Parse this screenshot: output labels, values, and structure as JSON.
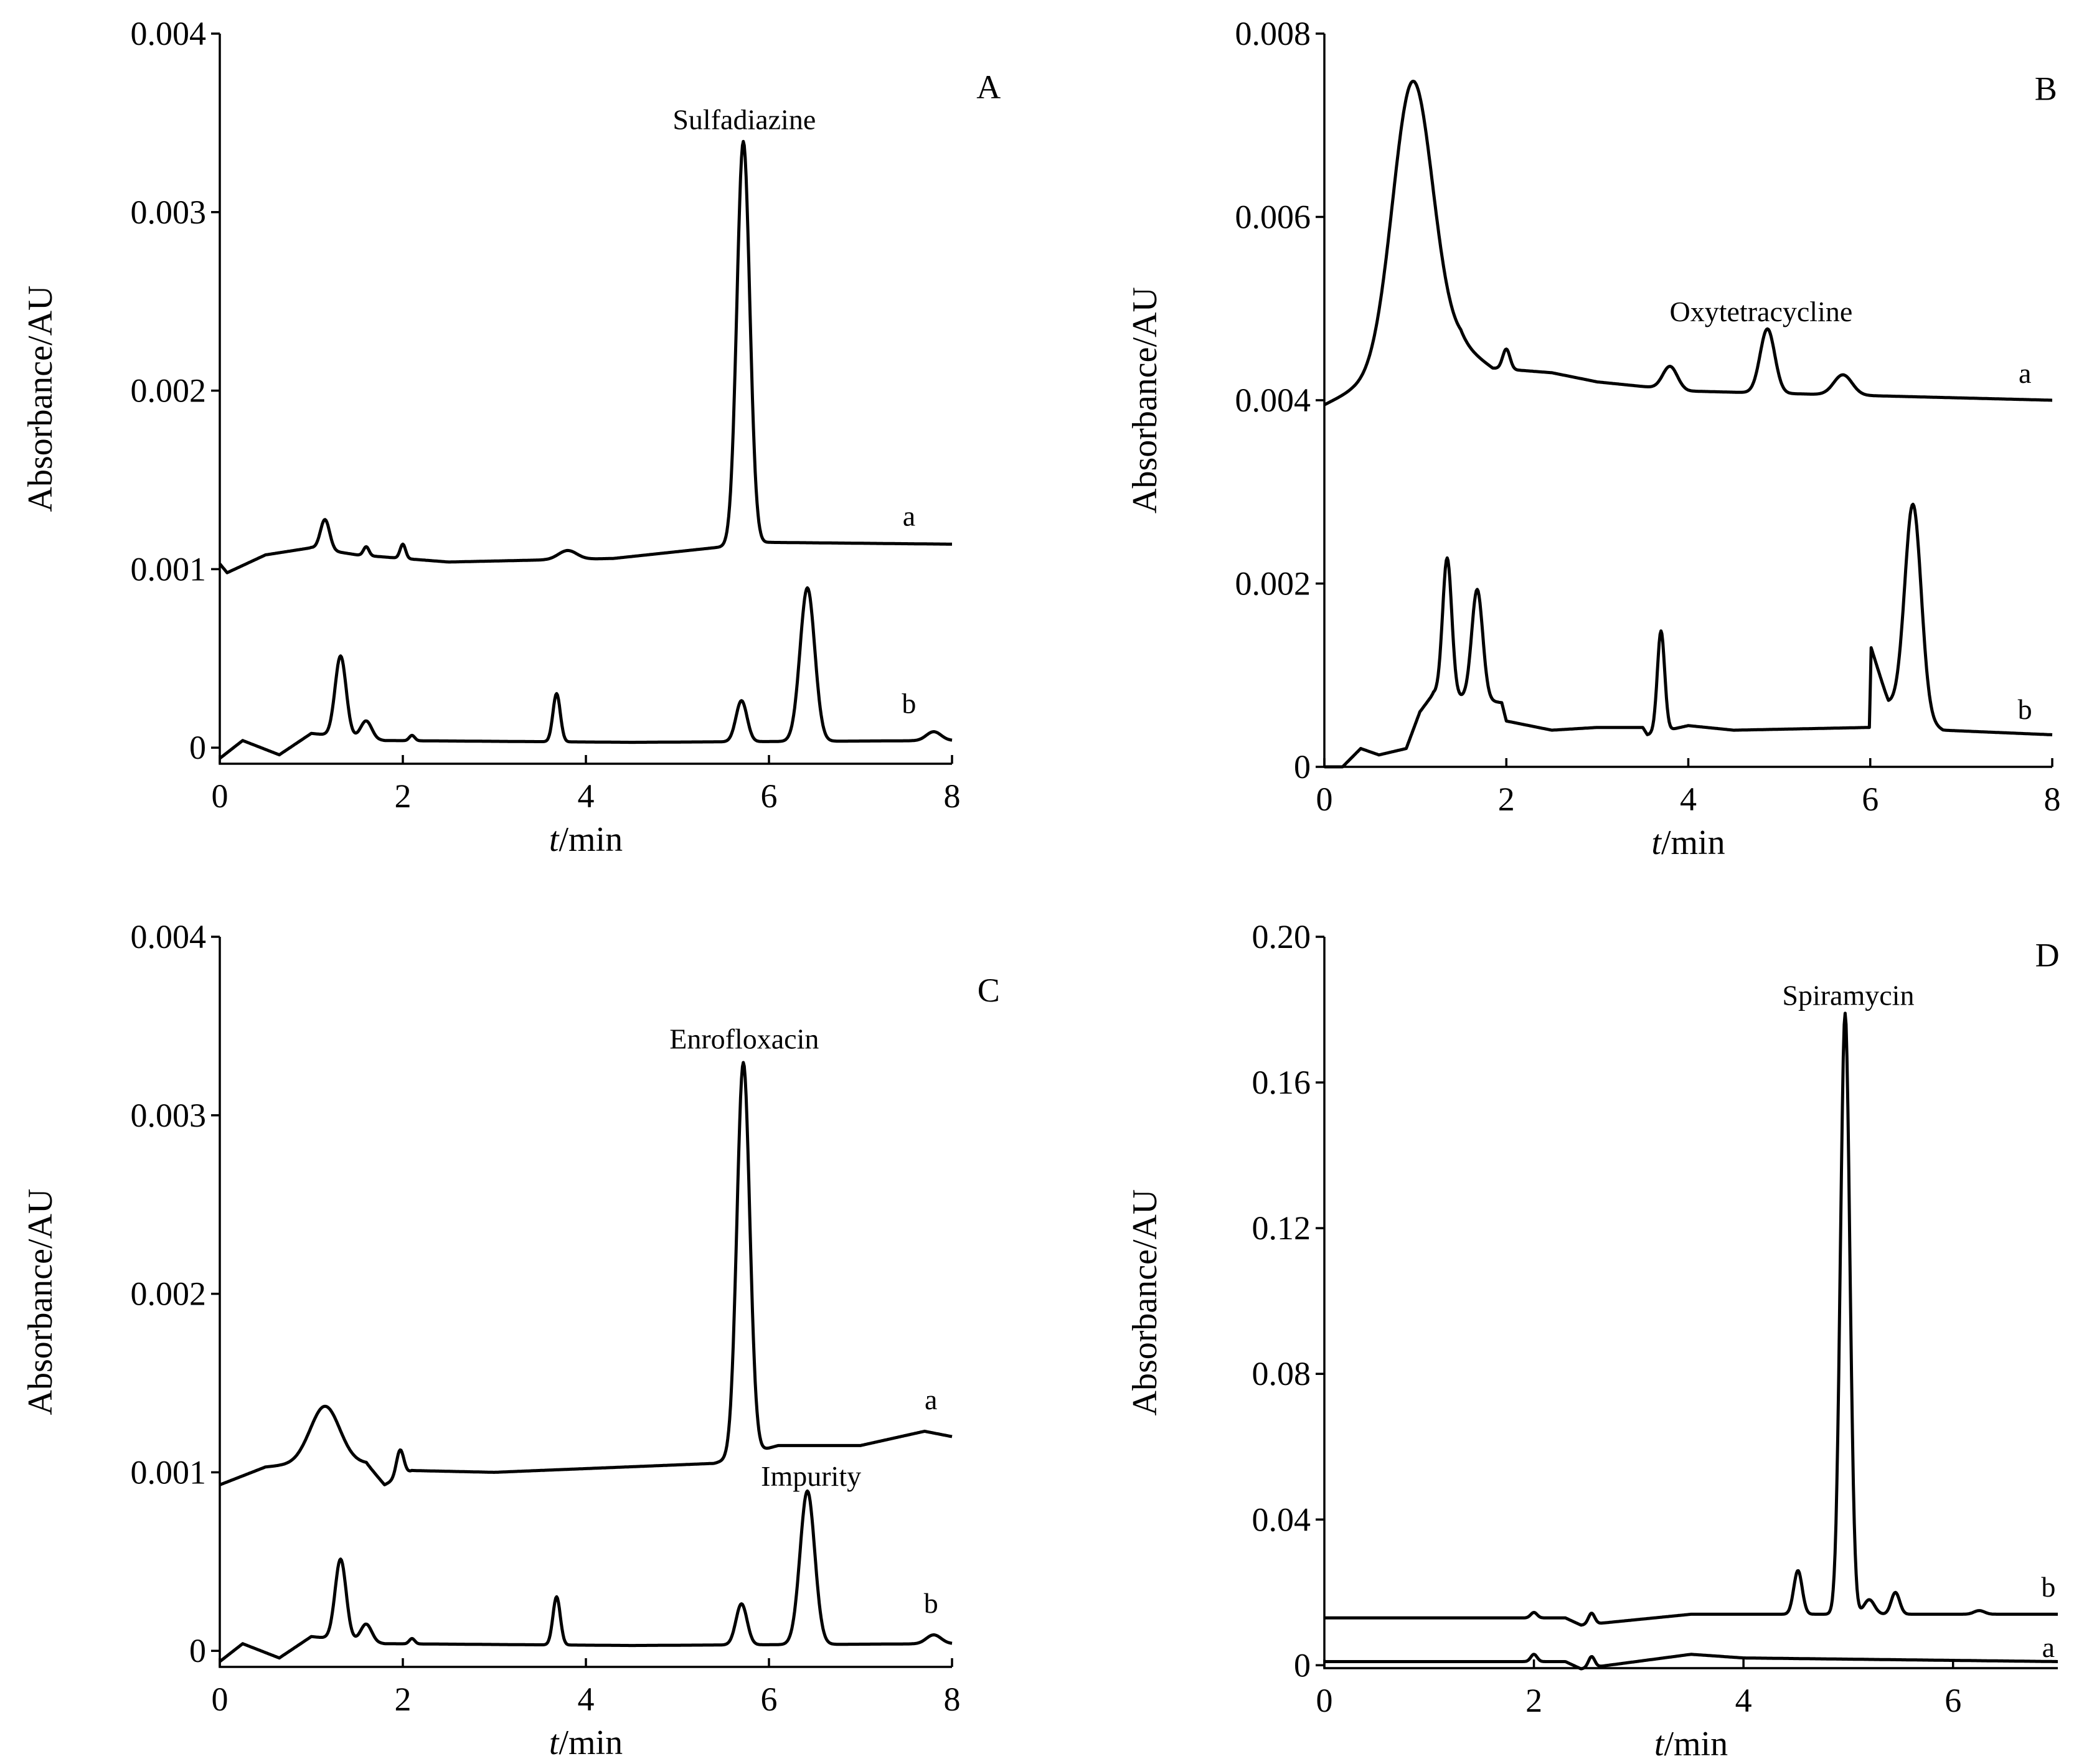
{
  "chart_data": [
    {
      "type": "line",
      "panel": "A",
      "xlabel_italic": "t",
      "xlabel_rest": "/min",
      "ylabel": "Absorbance/AU",
      "xlim": [
        0,
        8
      ],
      "ylim": [
        -9e-05,
        0.004
      ],
      "xticks": [
        "0",
        "2",
        "4",
        "6",
        "8"
      ],
      "xtick_values": [
        0,
        2,
        4,
        6,
        8
      ],
      "yticks": [
        "0",
        "0.001",
        "0.002",
        "0.003",
        "0.004"
      ],
      "ytick_values": [
        0,
        0.001,
        0.002,
        0.003,
        0.004
      ],
      "panel_label": {
        "text": "A",
        "x": 8.4,
        "y": 0.0037
      },
      "annotations": [
        {
          "text": "Sulfadiazine",
          "x": 5.73,
          "y": 0.00352
        }
      ],
      "series": [
        {
          "name": "a",
          "label_pos": [
            7.53,
            0.0013
          ],
          "baseline": [
            [
              0,
              0.00103
            ],
            [
              0.08,
              0.00098
            ],
            [
              0.5,
              0.00108
            ],
            [
              1,
              0.00112
            ],
            [
              1.5,
              0.00108
            ],
            [
              2.5,
              0.00104
            ],
            [
              4.3,
              0.00106
            ],
            [
              5.4,
              0.00112
            ],
            [
              6,
              0.00115
            ],
            [
              8,
              0.00114
            ]
          ],
          "peaks": [
            [
              1.15,
              0.00017,
              0.05
            ],
            [
              1.6,
              5e-05,
              0.03
            ],
            [
              2.0,
              8e-05,
              0.03
            ],
            [
              3.8,
              5e-05,
              0.1
            ],
            [
              5.72,
              0.00226,
              0.07
            ]
          ]
        },
        {
          "name": "b",
          "label_pos": [
            7.53,
            0.00025
          ],
          "baseline": [
            [
              0,
              -6e-05
            ],
            [
              0.25,
              4e-05
            ],
            [
              0.65,
              -4e-05
            ],
            [
              1.0,
              8e-05
            ],
            [
              1.8,
              4e-05
            ],
            [
              4.5,
              3e-05
            ],
            [
              8,
              4e-05
            ]
          ],
          "peaks": [
            [
              1.32,
              0.00045,
              0.06
            ],
            [
              1.6,
              0.0001,
              0.06
            ],
            [
              2.1,
              3e-05,
              0.03
            ],
            [
              3.68,
              0.00027,
              0.04
            ],
            [
              5.7,
              0.00023,
              0.06
            ],
            [
              6.42,
              0.00086,
              0.08
            ],
            [
              7.8,
              5e-05,
              0.08
            ]
          ]
        }
      ]
    },
    {
      "type": "line",
      "panel": "B",
      "xlabel_italic": "t",
      "xlabel_rest": "/min",
      "ylabel": "Absorbance/AU",
      "xlim": [
        0,
        8
      ],
      "ylim": [
        0,
        0.008
      ],
      "xticks": [
        "0",
        "2",
        "4",
        "6",
        "8"
      ],
      "xtick_values": [
        0,
        2,
        4,
        6,
        8
      ],
      "yticks": [
        "0",
        "0.002",
        "0.004",
        "0.006",
        "0.008"
      ],
      "ytick_values": [
        0,
        0.002,
        0.004,
        0.006,
        0.008
      ],
      "panel_label": {
        "text": "B",
        "x": 7.93,
        "y": 0.0074
      },
      "annotations": [
        {
          "text": "Oxytetracycline",
          "x": 4.8,
          "y": 0.00497
        }
      ],
      "series": [
        {
          "name": "a",
          "label_pos": [
            7.7,
            0.0043
          ],
          "baseline": [
            [
              0,
              0.00395
            ],
            [
              0.3,
              0.0041
            ],
            [
              1.5,
              0.0046
            ],
            [
              1.85,
              0.00435
            ],
            [
              2.5,
              0.0043
            ],
            [
              3,
              0.0042
            ],
            [
              4,
              0.0041
            ],
            [
              6,
              0.00405
            ],
            [
              8,
              0.004
            ]
          ],
          "peaks": [
            [
              0.97,
              0.0031,
              0.22
            ],
            [
              2.0,
              0.00022,
              0.04
            ],
            [
              3.8,
              0.00025,
              0.08
            ],
            [
              4.87,
              0.0007,
              0.08
            ],
            [
              5.7,
              0.00022,
              0.1
            ]
          ]
        },
        {
          "name": "b",
          "label_pos": [
            7.7,
            0.00063
          ],
          "baseline": [
            [
              0,
              0
            ],
            [
              0.2,
              0
            ],
            [
              0.4,
              0.0002
            ],
            [
              0.6,
              0.00013
            ],
            [
              0.9,
              0.0002
            ],
            [
              1.05,
              0.0006
            ],
            [
              1.2,
              0.0008
            ],
            [
              1.95,
              0.0007
            ],
            [
              2.0,
              0.0005
            ],
            [
              2.5,
              0.0004
            ],
            [
              3,
              0.00043
            ],
            [
              3.5,
              0.00043
            ],
            [
              3.55,
              0.00035
            ],
            [
              4,
              0.00045
            ],
            [
              4.5,
              0.0004
            ],
            [
              5.99,
              0.00043
            ],
            [
              6.01,
              0.0013
            ],
            [
              6.2,
              0.0007
            ],
            [
              6.8,
              0.0004
            ],
            [
              8,
              0.00035
            ]
          ],
          "peaks": [
            [
              1.35,
              0.0015,
              0.05
            ],
            [
              1.68,
              0.0012,
              0.06
            ],
            [
              3.7,
              0.0011,
              0.04
            ],
            [
              6.47,
              0.0023,
              0.09
            ]
          ]
        }
      ]
    },
    {
      "type": "line",
      "panel": "C",
      "xlabel_italic": "t",
      "xlabel_rest": "/min",
      "ylabel": "Absorbance/AU",
      "xlim": [
        0,
        8
      ],
      "ylim": [
        -9e-05,
        0.004
      ],
      "xticks": [
        "0",
        "2",
        "4",
        "6",
        "8"
      ],
      "xtick_values": [
        0,
        2,
        4,
        6,
        8
      ],
      "yticks": [
        "0",
        "0.001",
        "0.002",
        "0.003",
        "0.004"
      ],
      "ytick_values": [
        0,
        0.001,
        0.002,
        0.003,
        0.004
      ],
      "panel_label": {
        "text": "C",
        "x": 8.4,
        "y": 0.0037
      },
      "annotations": [
        {
          "text": "Enrofloxacin",
          "x": 5.73,
          "y": 0.00343
        },
        {
          "text": "Impurity",
          "x": 6.46,
          "y": 0.00098
        }
      ],
      "series": [
        {
          "name": "a",
          "label_pos": [
            7.77,
            0.00141
          ],
          "baseline": [
            [
              0,
              0.00093
            ],
            [
              0.5,
              0.00103
            ],
            [
              0.9,
              0.00105
            ],
            [
              1.6,
              0.00105
            ],
            [
              1.8,
              0.00093
            ],
            [
              2.1,
              0.00101
            ],
            [
              3,
              0.001
            ],
            [
              5.4,
              0.00105
            ],
            [
              6.1,
              0.00115
            ],
            [
              7,
              0.00115
            ],
            [
              7.7,
              0.00123
            ],
            [
              8,
              0.0012
            ]
          ],
          "peaks": [
            [
              1.15,
              0.00032,
              0.16
            ],
            [
              1.97,
              0.00015,
              0.04
            ],
            [
              5.72,
              0.0022,
              0.07
            ]
          ]
        },
        {
          "name": "b",
          "label_pos": [
            7.77,
            0.00027
          ],
          "baseline": [
            [
              0,
              -6e-05
            ],
            [
              0.25,
              4e-05
            ],
            [
              0.65,
              -4e-05
            ],
            [
              1.0,
              8e-05
            ],
            [
              1.8,
              4e-05
            ],
            [
              4.5,
              3e-05
            ],
            [
              8,
              4e-05
            ]
          ],
          "peaks": [
            [
              1.32,
              0.00045,
              0.06
            ],
            [
              1.6,
              0.0001,
              0.06
            ],
            [
              2.1,
              3e-05,
              0.03
            ],
            [
              3.68,
              0.00027,
              0.04
            ],
            [
              5.7,
              0.00023,
              0.06
            ],
            [
              6.42,
              0.00086,
              0.08
            ],
            [
              7.8,
              5e-05,
              0.08
            ]
          ]
        }
      ]
    },
    {
      "type": "line",
      "panel": "D",
      "xlabel_italic": "t",
      "xlabel_rest": "/min",
      "ylabel": "Absorbance/AU",
      "xlim": [
        0,
        7
      ],
      "ylim": [
        -0.0008,
        0.2
      ],
      "xticks": [
        "0",
        "2",
        "4",
        "6"
      ],
      "xtick_values": [
        0,
        2,
        4,
        6
      ],
      "yticks": [
        "0",
        "0.04",
        "0.08",
        "0.12",
        "0.16",
        "0.20"
      ],
      "ytick_values": [
        0,
        0.04,
        0.08,
        0.12,
        0.16,
        0.2
      ],
      "panel_label": {
        "text": "D",
        "x": 6.9,
        "y": 0.195
      },
      "annotations": [
        {
          "text": "Spiramycin",
          "x": 5.0,
          "y": 0.184
        }
      ],
      "series": [
        {
          "name": "a",
          "label_pos": [
            6.91,
            0.005
          ],
          "baseline": [
            [
              0,
              0.001
            ],
            [
              2.3,
              0.001
            ],
            [
              2.45,
              -0.001
            ],
            [
              3.5,
              0.003
            ],
            [
              4,
              0.002
            ],
            [
              7,
              0.001
            ]
          ],
          "peaks": [
            [
              2.0,
              0.002,
              0.03
            ],
            [
              2.55,
              0.003,
              0.03
            ]
          ]
        },
        {
          "name": "b",
          "label_pos": [
            6.91,
            0.0216
          ],
          "baseline": [
            [
              0,
              0.013
            ],
            [
              2.3,
              0.013
            ],
            [
              2.45,
              0.011
            ],
            [
              3.5,
              0.014
            ],
            [
              7,
              0.014
            ]
          ],
          "peaks": [
            [
              2.0,
              0.0015,
              0.03
            ],
            [
              2.55,
              0.003,
              0.03
            ],
            [
              4.52,
              0.012,
              0.04
            ],
            [
              4.97,
              0.165,
              0.045
            ],
            [
              5.2,
              0.004,
              0.05
            ],
            [
              5.45,
              0.006,
              0.04
            ],
            [
              6.25,
              0.001,
              0.05
            ]
          ]
        }
      ]
    }
  ]
}
